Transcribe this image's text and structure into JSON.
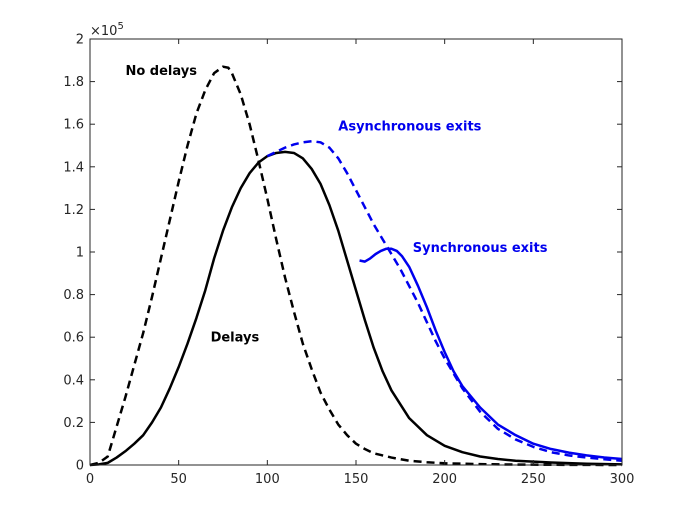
{
  "chart_data": {
    "type": "line",
    "title": "",
    "xlabel": "",
    "ylabel": "",
    "xlim": [
      0,
      300
    ],
    "ylim": [
      0,
      2
    ],
    "y_multiplier": "×10^5",
    "y_exponent_label": {
      "base": "×10",
      "exp": "5"
    },
    "grid": false,
    "xticks": [
      0,
      50,
      100,
      150,
      200,
      250,
      300
    ],
    "yticks": [
      0,
      0.2,
      0.4,
      0.6,
      0.8,
      1,
      1.2,
      1.4,
      1.6,
      1.8,
      2
    ],
    "series": [
      {
        "name": "No delays",
        "color": "#000000",
        "dash": true,
        "x": [
          0,
          5,
          10,
          15,
          20,
          25,
          30,
          35,
          40,
          45,
          50,
          55,
          60,
          65,
          70,
          75,
          78,
          80,
          85,
          90,
          95,
          100,
          105,
          110,
          115,
          120,
          125,
          130,
          135,
          140,
          145,
          150,
          155,
          160,
          170,
          180,
          190,
          200,
          220,
          240,
          260,
          280,
          300
        ],
        "y": [
          0,
          0.01,
          0.04,
          0.18,
          0.32,
          0.47,
          0.62,
          0.79,
          0.97,
          1.15,
          1.33,
          1.5,
          1.65,
          1.76,
          1.84,
          1.87,
          1.865,
          1.84,
          1.74,
          1.6,
          1.43,
          1.25,
          1.06,
          0.88,
          0.72,
          0.57,
          0.45,
          0.34,
          0.26,
          0.19,
          0.14,
          0.1,
          0.075,
          0.055,
          0.035,
          0.02,
          0.013,
          0.008,
          0.004,
          0.002,
          0.001,
          0.0005,
          0
        ]
      },
      {
        "name": "Delays",
        "color": "#000000",
        "dash": false,
        "x": [
          0,
          5,
          10,
          15,
          20,
          25,
          30,
          35,
          40,
          45,
          50,
          55,
          60,
          65,
          70,
          75,
          80,
          85,
          90,
          95,
          100,
          105,
          110,
          115,
          120,
          125,
          130,
          135,
          140,
          145,
          150,
          155,
          160,
          165,
          170,
          180,
          190,
          200,
          210,
          220,
          230,
          240,
          260,
          280,
          300
        ],
        "y": [
          0,
          0.003,
          0.01,
          0.035,
          0.065,
          0.1,
          0.14,
          0.2,
          0.27,
          0.36,
          0.46,
          0.57,
          0.69,
          0.82,
          0.97,
          1.1,
          1.21,
          1.3,
          1.37,
          1.42,
          1.45,
          1.465,
          1.47,
          1.465,
          1.44,
          1.39,
          1.32,
          1.22,
          1.1,
          0.96,
          0.82,
          0.68,
          0.55,
          0.44,
          0.35,
          0.22,
          0.14,
          0.09,
          0.06,
          0.04,
          0.028,
          0.02,
          0.012,
          0.006,
          0.003
        ]
      },
      {
        "name": "Asynchronous exits",
        "color": "#0000ee",
        "dash": true,
        "x": [
          100,
          105,
          110,
          115,
          120,
          125,
          130,
          135,
          140,
          145,
          150,
          155,
          160,
          165,
          170,
          175,
          180,
          185,
          190,
          195,
          200,
          210,
          220,
          230,
          240,
          250,
          260,
          270,
          280,
          290,
          300
        ],
        "y": [
          1.45,
          1.47,
          1.49,
          1.505,
          1.515,
          1.52,
          1.515,
          1.49,
          1.44,
          1.37,
          1.29,
          1.21,
          1.13,
          1.06,
          0.99,
          0.92,
          0.84,
          0.76,
          0.67,
          0.58,
          0.5,
          0.36,
          0.25,
          0.17,
          0.12,
          0.085,
          0.06,
          0.045,
          0.035,
          0.027,
          0.02
        ]
      },
      {
        "name": "Synchronous exits",
        "color": "#0000ee",
        "dash": false,
        "x": [
          152,
          155,
          158,
          161,
          164,
          167,
          170,
          173,
          176,
          180,
          185,
          190,
          195,
          200,
          205,
          210,
          220,
          230,
          240,
          250,
          260,
          270,
          280,
          290,
          300
        ],
        "y": [
          0.96,
          0.955,
          0.97,
          0.99,
          1.005,
          1.015,
          1.015,
          1.005,
          0.98,
          0.93,
          0.84,
          0.74,
          0.63,
          0.53,
          0.44,
          0.37,
          0.27,
          0.19,
          0.14,
          0.1,
          0.075,
          0.058,
          0.045,
          0.035,
          0.028
        ]
      }
    ],
    "annotations": [
      {
        "text": "No delays",
        "x": 20,
        "y": 1.83,
        "color": "#000000"
      },
      {
        "text": "Asynchronous exits",
        "x": 140,
        "y": 1.57,
        "color": "#0000ee"
      },
      {
        "text": "Synchronous exits",
        "x": 182,
        "y": 1.0,
        "color": "#0000ee"
      },
      {
        "text": "Delays",
        "x": 68,
        "y": 0.58,
        "color": "#000000"
      }
    ]
  }
}
